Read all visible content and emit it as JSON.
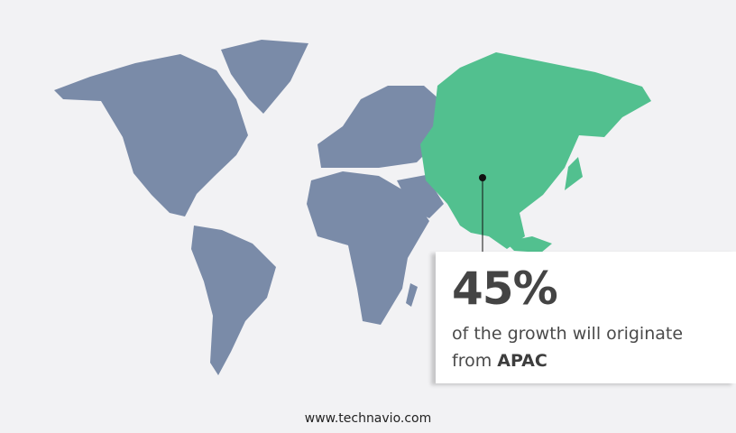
{
  "colors": {
    "background": "#f2f2f4",
    "land": "#7a8ba8",
    "highlight": "#52c08f",
    "text": "#444444"
  },
  "highlighted_region": "APAC",
  "callout": {
    "value": "45%",
    "text": "of the growth will originate",
    "text_line2_prefix": "from",
    "region": "APAC"
  },
  "footer": {
    "website": "www.technavio.com"
  }
}
